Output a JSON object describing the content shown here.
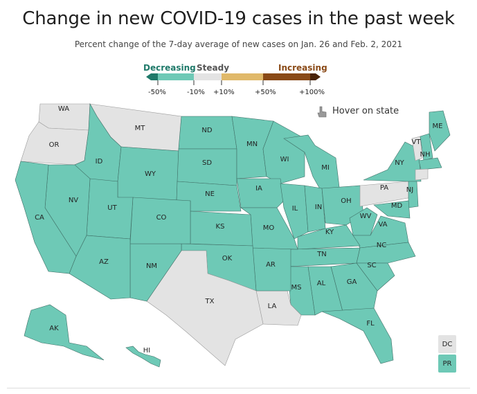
{
  "title": "Change in new COVID-19 cases in the past week",
  "subtitle": "Percent change of the 7-day average of new cases on Jan. 26 and Feb. 2, 2021",
  "legend": {
    "decreasing": "Decreasing",
    "steady": "Steady",
    "increasing": "Increasing",
    "ticks": [
      "-50%",
      "-10%",
      "+10%",
      "+50%",
      "+100%"
    ],
    "colors": {
      "dark_decrease": "#1f7a6a",
      "decrease": "#6ec9b6",
      "steady": "#e3e3e3",
      "increase_light": "#e0b96a",
      "increase": "#8a4a17",
      "increase_dark": "#4a2308"
    }
  },
  "hover_hint": "Hover on state",
  "states": {
    "WA": "steady",
    "OR": "steady",
    "MT": "steady",
    "ID": "decreasing",
    "WY": "decreasing",
    "ND": "decreasing",
    "SD": "decreasing",
    "NE": "decreasing",
    "MN": "decreasing",
    "WI": "decreasing",
    "MI": "decreasing",
    "IA": "decreasing",
    "IL": "decreasing",
    "IN": "decreasing",
    "OH": "decreasing",
    "PA": "steady",
    "NY": "decreasing",
    "VT": "steady",
    "NH": "decreasing",
    "ME": "decreasing",
    "MA": "decreasing",
    "CT": "steady",
    "NJ": "decreasing",
    "MD": "decreasing",
    "WV": "decreasing",
    "VA": "decreasing",
    "KY": "decreasing",
    "TN": "decreasing",
    "NC": "decreasing",
    "SC": "decreasing",
    "GA": "decreasing",
    "AL": "decreasing",
    "MS": "decreasing",
    "FL": "decreasing",
    "LA": "steady",
    "AR": "decreasing",
    "MO": "decreasing",
    "KS": "decreasing",
    "OK": "decreasing",
    "TX": "steady",
    "NM": "decreasing",
    "CO": "decreasing",
    "UT": "decreasing",
    "AZ": "decreasing",
    "NV": "decreasing",
    "CA": "decreasing",
    "AK": "decreasing",
    "HI": "decreasing",
    "DC": "steady",
    "PR": "decreasing"
  },
  "labels": {
    "WA": "WA",
    "OR": "OR",
    "MT": "MT",
    "ID": "ID",
    "WY": "WY",
    "ND": "ND",
    "SD": "SD",
    "NE": "NE",
    "MN": "MN",
    "WI": "WI",
    "MI": "MI",
    "IA": "IA",
    "IL": "IL",
    "IN": "IN",
    "OH": "OH",
    "PA": "PA",
    "NY": "NY",
    "VT": "VT",
    "NH": "NH",
    "ME": "ME",
    "NJ": "NJ",
    "MD": "MD",
    "WV": "WV",
    "VA": "VA",
    "KY": "KY",
    "TN": "TN",
    "NC": "NC",
    "SC": "SC",
    "GA": "GA",
    "AL": "AL",
    "MS": "MS",
    "FL": "FL",
    "LA": "LA",
    "AR": "AR",
    "MO": "MO",
    "KS": "KS",
    "OK": "OK",
    "TX": "TX",
    "NM": "NM",
    "CO": "CO",
    "UT": "UT",
    "AZ": "AZ",
    "NV": "NV",
    "CA": "CA",
    "AK": "AK",
    "HI": "HI",
    "DC": "DC",
    "PR": "PR"
  }
}
